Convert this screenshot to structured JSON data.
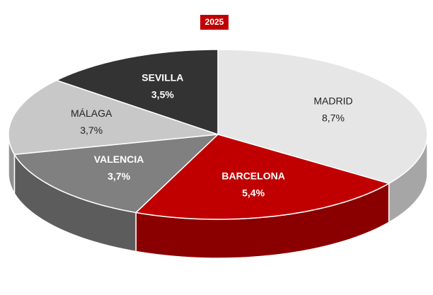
{
  "chart_data": {
    "type": "pie",
    "title": "2025",
    "categories": [
      "MADRID",
      "BARCELONA",
      "VALENCIA",
      "MÁLAGA",
      "SEVILLA"
    ],
    "values": [
      8.7,
      5.4,
      3.7,
      3.7,
      3.5
    ],
    "value_labels": [
      "8,7%",
      "5,4%",
      "3,7%",
      "3,7%",
      "3,5%"
    ],
    "colors": [
      "#e6e6e6",
      "#c00000",
      "#808080",
      "#c8c8c8",
      "#333333"
    ],
    "title_color": "#c00000"
  }
}
